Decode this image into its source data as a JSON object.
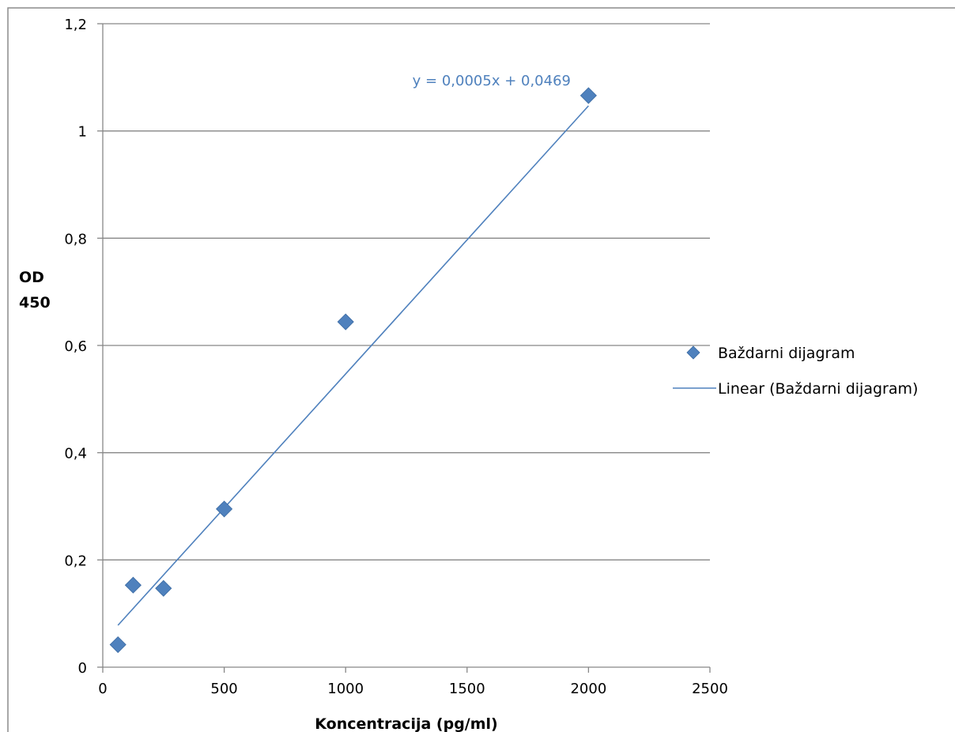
{
  "chart_data": {
    "type": "scatter",
    "title": "",
    "xlabel": "Koncentracija (pg/ml)",
    "ylabel_lines": [
      "OD",
      "450"
    ],
    "xlim": [
      0,
      2500
    ],
    "ylim": [
      0,
      1.2
    ],
    "xticks": [
      0,
      500,
      1000,
      1500,
      2000,
      2500
    ],
    "yticks": [
      0,
      0.2,
      0.4,
      0.6,
      0.8,
      1,
      1.2
    ],
    "xtick_labels": [
      "0",
      "500",
      "1000",
      "1500",
      "2000",
      "2500"
    ],
    "ytick_labels": [
      "0",
      "0,2",
      "0,4",
      "0,6",
      "0,8",
      "1",
      "1,2"
    ],
    "grid": "horizontal",
    "legend_position": "right",
    "series": [
      {
        "name": "Baždarni dijagram",
        "marker": "diamond",
        "color": "#4F81BD",
        "x": [
          62.5,
          125,
          250,
          500,
          1000,
          2000
        ],
        "y": [
          0.042,
          0.153,
          0.147,
          0.295,
          0.644,
          1.066
        ]
      }
    ],
    "trendline": {
      "name": "Linear (Baždarni dijagram)",
      "type": "linear",
      "color": "#4F81BD",
      "slope": 0.0005,
      "intercept": 0.0469,
      "x_range": [
        62.5,
        2000
      ],
      "equation_label": "y = 0,0005x + 0,0469"
    }
  }
}
